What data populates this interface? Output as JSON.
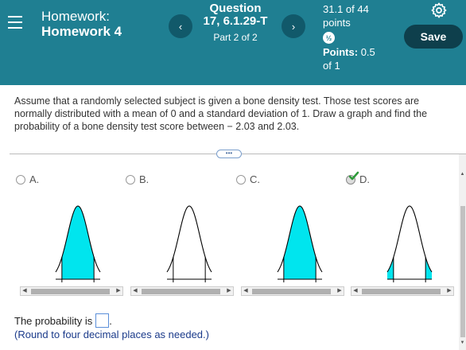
{
  "header": {
    "homework_title": "Homework:",
    "homework_name": "Homework 4",
    "prev_label": "‹",
    "next_label": "›",
    "question_title_1": "Question",
    "question_title_2": "17, 6.1.29-T",
    "part": "Part 2 of 2",
    "score_1": "31.1 of 44",
    "score_2": "points",
    "partial_icon": "½",
    "points_label": "Points:",
    "points_value": "0.5",
    "points_of": "of 1",
    "save_label": "Save",
    "accent": "#1f7f92"
  },
  "question": {
    "text": "Assume that a randomly selected subject is given a bone density test. Those test scores are normally distributed with a mean of 0 and a standard deviation of 1. Draw a graph and find the probability of a bone density test score between − 2.03 and 2.03.",
    "expand_label": "•••"
  },
  "options": [
    {
      "letter": "A.",
      "selected": false
    },
    {
      "letter": "B.",
      "selected": false
    },
    {
      "letter": "C.",
      "selected": false
    },
    {
      "letter": "D.",
      "selected": true
    }
  ],
  "answer": {
    "prompt": "The probability is",
    "note": "(Round to four decimal places as needed.)",
    "value": ""
  },
  "colors": {
    "fill": "#00e5ee",
    "curve": "#000000"
  }
}
